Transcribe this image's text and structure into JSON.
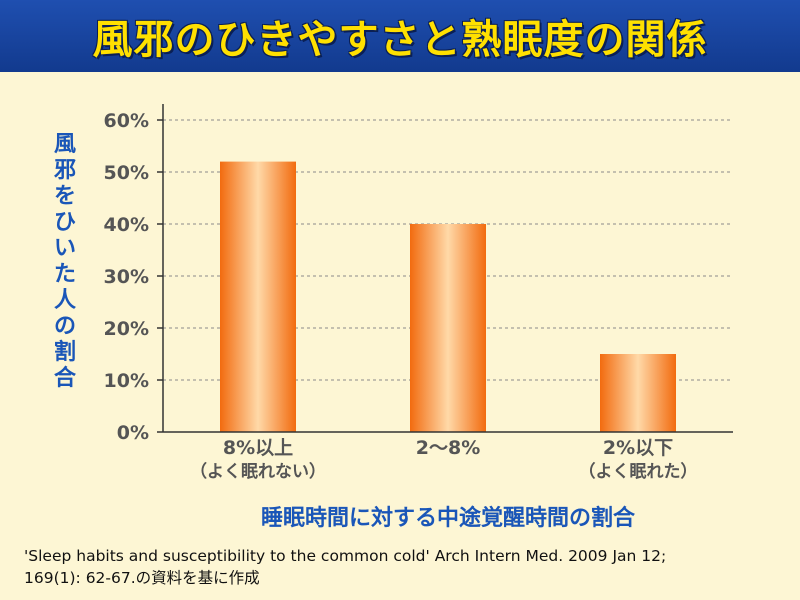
{
  "title": "風邪のひきやすさと熟眠度の関係",
  "chart_data": {
    "type": "bar",
    "categories": [
      {
        "label": "8%以上",
        "sublabel": "（よく眠れない）"
      },
      {
        "label": "2〜8%",
        "sublabel": ""
      },
      {
        "label": "2%以下",
        "sublabel": "（よく眠れた）"
      }
    ],
    "values": [
      52,
      40,
      15
    ],
    "ylabel": "風邪をひいた人の割合",
    "xlabel": "睡眠時間に対する中途覚醒時間の割合",
    "ylim": [
      0,
      60
    ],
    "yticks": [
      "0%",
      "10%",
      "20%",
      "30%",
      "40%",
      "50%",
      "60%"
    ],
    "grid": true,
    "bar_color": "#f7941d"
  },
  "source_lines": [
    "'Sleep habits and susceptibility to the common cold' Arch Intern Med. 2009 Jan 12;",
    "169(1): 62-67.の資料を基に作成"
  ]
}
